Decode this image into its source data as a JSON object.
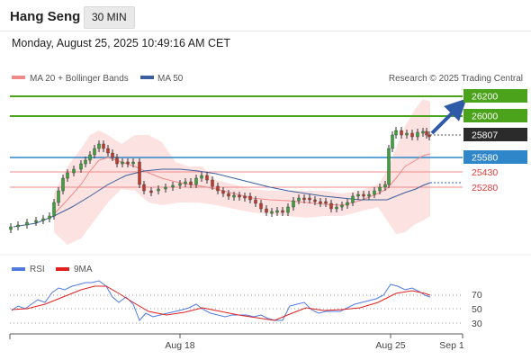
{
  "header": {
    "title": "Hang Seng",
    "timeframe": "30 MIN"
  },
  "datetime": "Monday, August 25, 2025 10:49:16 AM CET",
  "legend": {
    "ma20_bb": {
      "label": "MA 20 + Bollinger Bands",
      "color": "#f08a8a"
    },
    "ma50": {
      "label": "MA 50",
      "color": "#3b5e9c"
    }
  },
  "copyright": "Research © 2025 Trading Central",
  "levels": [
    {
      "value": "26200",
      "type": "resistance",
      "color": "#4aa31a"
    },
    {
      "value": "26000",
      "type": "resistance",
      "color": "#4aa31a"
    },
    {
      "value": "25807",
      "type": "last",
      "color": "#2b2b2b"
    },
    {
      "value": "25580",
      "type": "pivot",
      "color": "#2f86c8"
    },
    {
      "value": "25430",
      "type": "support",
      "color": "#e23b3b"
    },
    {
      "value": "25280",
      "type": "support",
      "color": "#e23b3b"
    }
  ],
  "rsi_legend": {
    "rsi": {
      "label": "RSI",
      "color": "#4f7be0"
    },
    "ma9": {
      "label": "9MA",
      "color": "#e02020"
    }
  },
  "rsi_ticks": [
    "70",
    "50",
    "30"
  ],
  "x_axis": {
    "ticks": [
      "Aug 18",
      "Aug 25",
      "Sep 1"
    ]
  },
  "icons": {
    "forecast_arrow": "arrow-up-right-icon"
  }
}
